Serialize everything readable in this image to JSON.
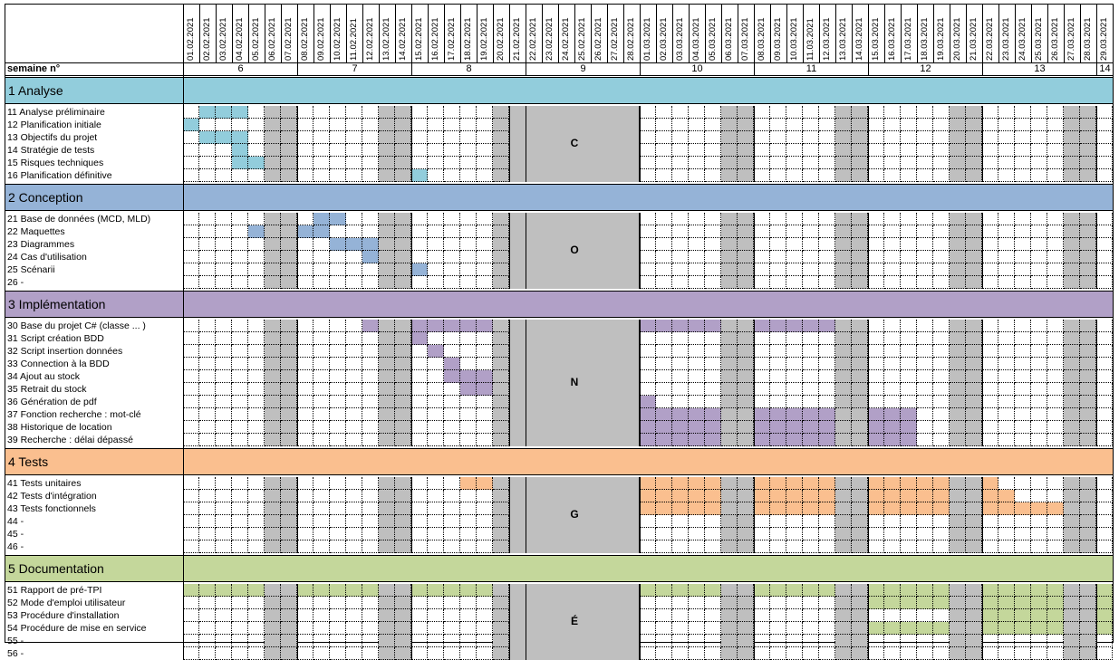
{
  "header": {
    "week_label": "semaine n°",
    "dates": [
      "01.02.2021",
      "02.02.2021",
      "03.02.2021",
      "04.02.2021",
      "05.02.2021",
      "06.02.2021",
      "07.02.2021",
      "08.02.2021",
      "09.02.2021",
      "10.02.2021",
      "11.02.2021",
      "12.02.2021",
      "13.02.2021",
      "14.02.2021",
      "15.02.2021",
      "16.02.2021",
      "17.02.2021",
      "18.02.2021",
      "19.02.2021",
      "20.02.2021",
      "21.02.2021",
      "22.02.2021",
      "23.02.2021",
      "24.02.2021",
      "25.02.2021",
      "26.02.2021",
      "27.02.2021",
      "28.02.2021",
      "01.03.2021",
      "02.03.2021",
      "03.03.2021",
      "04.03.2021",
      "05.03.2021",
      "06.03.2021",
      "07.03.2021",
      "08.03.2021",
      "09.03.2021",
      "10.03.2021",
      "11.03.2021",
      "12.03.2021",
      "13.03.2021",
      "14.03.2021",
      "15.03.2021",
      "16.03.2021",
      "17.03.2021",
      "18.03.2021",
      "19.03.2021",
      "20.03.2021",
      "21.03.2021",
      "22.03.2021",
      "23.03.2021",
      "24.03.2021",
      "25.03.2021",
      "26.03.2021",
      "27.03.2021",
      "28.03.2021",
      "29.03.2021"
    ],
    "weeks": [
      {
        "label": "6",
        "start": 0,
        "span": 7
      },
      {
        "label": "7",
        "start": 7,
        "span": 7
      },
      {
        "label": "8",
        "start": 14,
        "span": 7
      },
      {
        "label": "9",
        "start": 21,
        "span": 7
      },
      {
        "label": "10",
        "start": 28,
        "span": 7
      },
      {
        "label": "11",
        "start": 35,
        "span": 7
      },
      {
        "label": "12",
        "start": 42,
        "span": 7
      },
      {
        "label": "13",
        "start": 49,
        "span": 7
      },
      {
        "label": "14",
        "start": 56,
        "span": 1
      }
    ]
  },
  "colors": {
    "analyse": "#92CDDC",
    "conception": "#95B3D7",
    "implementation": "#B1A0C7",
    "tests": "#FABF8F",
    "documentation": "#C4D79B",
    "weekend": "#BFBFBF",
    "break": "#BFBFBF"
  },
  "break_letters": [
    "C",
    "O",
    "N",
    "G",
    "É"
  ],
  "phases": [
    {
      "title": "1 Analyse",
      "color_key": "analyse",
      "tasks": [
        {
          "label": "11 Analyse préliminaire",
          "days": [
            1,
            2,
            3
          ]
        },
        {
          "label": "12 Planification initiale",
          "days": [
            0
          ]
        },
        {
          "label": "13 Objectifs du projet",
          "days": [
            1,
            2,
            3
          ]
        },
        {
          "label": "14 Stratégie de tests",
          "days": [
            3
          ]
        },
        {
          "label": "15 Risques techniques",
          "days": [
            3,
            4
          ]
        },
        {
          "label": "16 Planification définitive",
          "days": [
            14
          ]
        }
      ]
    },
    {
      "title": "2 Conception",
      "color_key": "conception",
      "tasks": [
        {
          "label": "21 Base de données (MCD, MLD)",
          "days": [
            8,
            9
          ]
        },
        {
          "label": "22 Maquettes",
          "days": [
            4,
            7,
            8
          ]
        },
        {
          "label": "23 Diagrammes",
          "days": [
            9,
            10,
            11
          ]
        },
        {
          "label": "24 Cas d'utilisation",
          "days": [
            11
          ]
        },
        {
          "label": "25 Scénarii",
          "days": [
            14
          ]
        },
        {
          "label": "26 -",
          "days": []
        }
      ]
    },
    {
      "title": "3 Implémentation",
      "color_key": "implementation",
      "tasks": [
        {
          "label": "30 Base du projet C# (classe ... )",
          "days": [
            11,
            14,
            15,
            16,
            17,
            18,
            28,
            29,
            30,
            31,
            32,
            35,
            36,
            37,
            38,
            39
          ]
        },
        {
          "label": "31 Script création BDD",
          "days": [
            14
          ]
        },
        {
          "label": "32 Script insertion données",
          "days": [
            15
          ]
        },
        {
          "label": "33  Connection à la BDD",
          "days": [
            16
          ]
        },
        {
          "label": "34  Ajout au stock",
          "days": [
            16,
            17,
            18
          ]
        },
        {
          "label": "35  Retrait du stock",
          "days": [
            17,
            18
          ]
        },
        {
          "label": "36 Génération de pdf",
          "days": [
            28
          ]
        },
        {
          "label": "37 Fonction recherche : mot-clé",
          "days": [
            28,
            29,
            30,
            31,
            32,
            35,
            36,
            37,
            38,
            39,
            42,
            43,
            44
          ]
        },
        {
          "label": "38 Historique de location",
          "days": [
            28,
            29,
            30,
            31,
            32,
            35,
            36,
            37,
            38,
            39,
            42,
            43,
            44
          ]
        },
        {
          "label": "39 Recherche : délai dépassé",
          "days": [
            28,
            29,
            30,
            31,
            32,
            35,
            36,
            37,
            38,
            39,
            42,
            43,
            44
          ]
        }
      ]
    },
    {
      "title": "4 Tests",
      "color_key": "tests",
      "tasks": [
        {
          "label": "41 Tests unitaires",
          "days": [
            17,
            18,
            28,
            29,
            30,
            31,
            32,
            35,
            36,
            37,
            38,
            39,
            42,
            43,
            44,
            45,
            46,
            49
          ]
        },
        {
          "label": "42 Tests d'intégration",
          "days": [
            28,
            29,
            30,
            31,
            32,
            35,
            36,
            37,
            38,
            39,
            42,
            43,
            44,
            45,
            46,
            49,
            50
          ]
        },
        {
          "label": "43 Tests fonctionnels",
          "days": [
            28,
            29,
            30,
            31,
            32,
            35,
            36,
            37,
            38,
            39,
            42,
            43,
            44,
            45,
            46,
            49,
            50,
            51,
            52,
            53
          ]
        },
        {
          "label": "44 -",
          "days": []
        },
        {
          "label": "45 -",
          "days": []
        },
        {
          "label": "46 -",
          "days": []
        }
      ]
    },
    {
      "title": "5 Documentation",
      "color_key": "documentation",
      "tasks": [
        {
          "label": "51 Rapport de pré-TPI",
          "days": [
            0,
            1,
            2,
            3,
            4,
            7,
            8,
            9,
            10,
            11,
            14,
            15,
            16,
            17,
            18,
            28,
            29,
            30,
            31,
            32,
            35,
            36,
            37,
            38,
            39,
            42,
            43,
            44,
            45,
            46,
            49,
            50,
            51,
            52,
            53,
            56
          ]
        },
        {
          "label": "52 Mode d'emploi utilisateur",
          "days": [
            42,
            43,
            44,
            45,
            46,
            49,
            50,
            51,
            52,
            53,
            56
          ]
        },
        {
          "label": "53 Procédure d'installation",
          "days": [
            49,
            50,
            51,
            52,
            53,
            56
          ]
        },
        {
          "label": "54 Procédure de mise en service",
          "days": [
            42,
            43,
            44,
            45,
            46,
            49,
            50,
            51,
            52,
            53,
            56
          ]
        },
        {
          "label": "55 -",
          "days": []
        },
        {
          "label": "56 -",
          "days": []
        }
      ]
    }
  ]
}
